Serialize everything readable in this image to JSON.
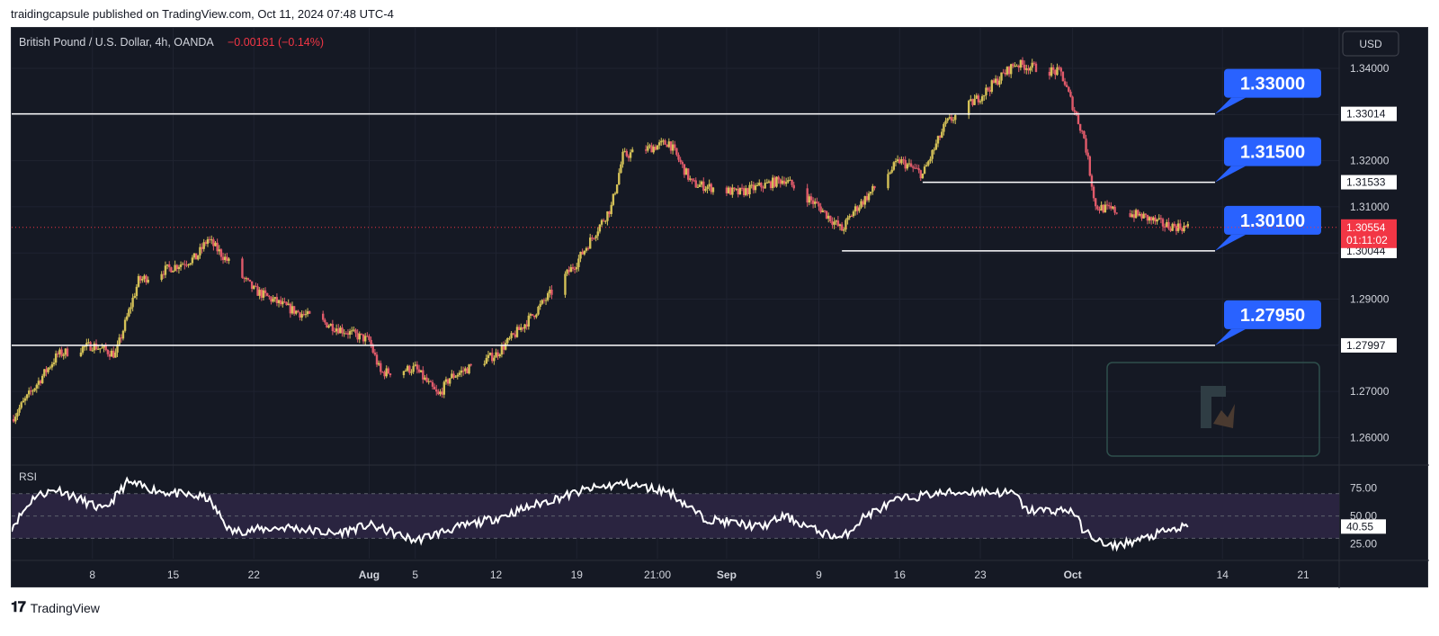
{
  "header": {
    "published_text": "traidingcapsule published on TradingView.com, Oct 11, 2024 07:48 UTC-4"
  },
  "legend": {
    "symbol": "British Pound / U.S. Dollar, 4h, OANDA",
    "change": "−0.00181 (−0.14%)"
  },
  "currency_button": "USD",
  "price_axis": {
    "ticks": [
      "1.34000",
      "1.32000",
      "1.31000",
      "1.29000",
      "1.27000",
      "1.26000"
    ],
    "level_tags": [
      "1.33014",
      "1.31533",
      "1.30044",
      "1.27997"
    ],
    "current_price": "1.30554",
    "countdown": "01:11:02"
  },
  "callouts": [
    "1.33000",
    "1.31500",
    "1.30100",
    "1.27950"
  ],
  "rsi": {
    "label": "RSI",
    "ticks": [
      "75.00",
      "50.00",
      "25.00"
    ],
    "current": "40.55"
  },
  "time_axis": [
    "8",
    "15",
    "22",
    "Aug",
    "5",
    "12",
    "19",
    "21:00",
    "Sep",
    "9",
    "16",
    "23",
    "Oct",
    "14",
    "21"
  ],
  "footer": {
    "brand": "TradingView"
  },
  "colors": {
    "up": "#d4c157",
    "down": "#e05a6a",
    "level_line": "#ffffff",
    "callout": "#2962ff",
    "price_tag": "#f23645",
    "rsi_line": "#ffffff",
    "rsi_band": "#2a2440",
    "background": "#151924"
  },
  "chart_data": {
    "type": "candlestick",
    "x_range": [
      "2024-07-01",
      "2024-10-21"
    ],
    "ylim": [
      1.255,
      1.348
    ],
    "grid": true,
    "price_close_path": [
      [
        "2024-07-01",
        1.264
      ],
      [
        "2024-07-05",
        1.278
      ],
      [
        "2024-07-08",
        1.28
      ],
      [
        "2024-07-10",
        1.278
      ],
      [
        "2024-07-12",
        1.294
      ],
      [
        "2024-07-15",
        1.297
      ],
      [
        "2024-07-17",
        1.299
      ],
      [
        "2024-07-18",
        1.303
      ],
      [
        "2024-07-22",
        1.292
      ],
      [
        "2024-07-25",
        1.288
      ],
      [
        "2024-07-29",
        1.284
      ],
      [
        "2024-08-01",
        1.281
      ],
      [
        "2024-08-02",
        1.274
      ],
      [
        "2024-08-05",
        1.275
      ],
      [
        "2024-08-07",
        1.269
      ],
      [
        "2024-08-08",
        1.273
      ],
      [
        "2024-08-12",
        1.278
      ],
      [
        "2024-08-15",
        1.286
      ],
      [
        "2024-08-19",
        1.298
      ],
      [
        "2024-08-22",
        1.31
      ],
      [
        "2024-08-23",
        1.321
      ],
      [
        "2024-08-27",
        1.324
      ],
      [
        "2024-08-29",
        1.315
      ],
      [
        "2024-09-02",
        1.313
      ],
      [
        "2024-09-06",
        1.316
      ],
      [
        "2024-09-09",
        1.31
      ],
      [
        "2024-09-11",
        1.305
      ],
      [
        "2024-09-12",
        1.309
      ],
      [
        "2024-09-16",
        1.32
      ],
      [
        "2024-09-18",
        1.317
      ],
      [
        "2024-09-20",
        1.328
      ],
      [
        "2024-09-23",
        1.334
      ],
      [
        "2024-09-26",
        1.341
      ],
      [
        "2024-09-30",
        1.339
      ],
      [
        "2024-10-02",
        1.325
      ],
      [
        "2024-10-03",
        1.31
      ],
      [
        "2024-10-07",
        1.308
      ],
      [
        "2024-10-09",
        1.306
      ],
      [
        "2024-10-11",
        1.3055
      ]
    ],
    "horizontal_levels": [
      {
        "value": 1.33014,
        "callout": "1.33000",
        "tag": "1.33014"
      },
      {
        "value": 1.31533,
        "callout": "1.31500",
        "tag": "1.31533"
      },
      {
        "value": 1.30044,
        "callout": "1.30100",
        "tag": "1.30044"
      },
      {
        "value": 1.27997,
        "callout": "1.27950",
        "tag": "1.27997"
      }
    ],
    "current_price": 1.30554,
    "rsi": {
      "ylim": [
        15,
        90
      ],
      "bands": [
        30,
        50,
        70
      ],
      "path": [
        [
          "2024-07-01",
          40
        ],
        [
          "2024-07-03",
          68
        ],
        [
          "2024-07-05",
          74
        ],
        [
          "2024-07-09",
          55
        ],
        [
          "2024-07-11",
          80
        ],
        [
          "2024-07-14",
          72
        ],
        [
          "2024-07-18",
          66
        ],
        [
          "2024-07-20",
          36
        ],
        [
          "2024-07-25",
          40
        ],
        [
          "2024-07-29",
          34
        ],
        [
          "2024-08-01",
          42
        ],
        [
          "2024-08-05",
          28
        ],
        [
          "2024-08-08",
          38
        ],
        [
          "2024-08-12",
          48
        ],
        [
          "2024-08-16",
          62
        ],
        [
          "2024-08-20",
          74
        ],
        [
          "2024-08-23",
          79
        ],
        [
          "2024-08-27",
          72
        ],
        [
          "2024-08-30",
          48
        ],
        [
          "2024-09-04",
          40
        ],
        [
          "2024-09-06",
          50
        ],
        [
          "2024-09-09",
          36
        ],
        [
          "2024-09-11",
          30
        ],
        [
          "2024-09-13",
          50
        ],
        [
          "2024-09-16",
          65
        ],
        [
          "2024-09-19",
          70
        ],
        [
          "2024-09-23",
          72
        ],
        [
          "2024-09-26",
          70
        ],
        [
          "2024-09-27",
          55
        ],
        [
          "2024-10-01",
          55
        ],
        [
          "2024-10-02",
          36
        ],
        [
          "2024-10-03",
          30
        ],
        [
          "2024-10-04",
          22
        ],
        [
          "2024-10-07",
          29
        ],
        [
          "2024-10-09",
          36
        ],
        [
          "2024-10-11",
          40.55
        ]
      ]
    }
  }
}
